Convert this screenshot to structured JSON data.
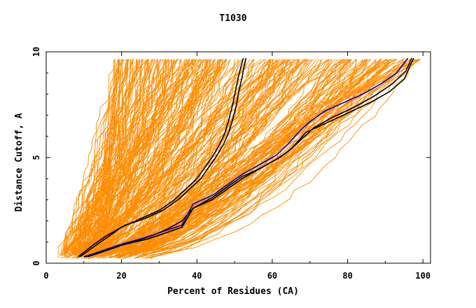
{
  "chart_data": {
    "type": "line",
    "title": "T1030",
    "xlabel": "Percent of Residues (CA)",
    "ylabel": "Distance Cutoff, A",
    "xlim": [
      0,
      102
    ],
    "ylim": [
      0,
      10
    ],
    "xticks": [
      0,
      20,
      40,
      60,
      80,
      100
    ],
    "xtick_labels": [
      "0",
      "20",
      "40",
      "60",
      "80",
      "100"
    ],
    "yticks": [
      0,
      5,
      10
    ],
    "ytick_labels": [
      "0",
      "5",
      "10"
    ],
    "grid": false,
    "colors": {
      "background_models": "#ff8c00",
      "highlight_black": "#000000",
      "highlight_blue": "#0000cc",
      "axes": "#000000"
    },
    "background_series_count": 300,
    "background_series_clusters": [
      {
        "start_x": [
          3,
          14
        ],
        "end_x_at_top": [
          18,
          48
        ],
        "weight": 0.45
      },
      {
        "start_x": [
          10,
          24
        ],
        "end_x_at_top": [
          50,
          80
        ],
        "weight": 0.35
      },
      {
        "start_x": [
          16,
          28
        ],
        "end_x_at_top": [
          80,
          99
        ],
        "weight": 0.2
      }
    ],
    "series": [
      {
        "color": "#000000",
        "x": [
          8.5,
          12,
          16,
          21,
          26,
          31,
          35,
          38,
          41,
          43,
          45,
          47,
          48.5,
          49.5,
          50.5,
          51.2,
          52,
          52.5,
          53
        ],
        "y": [
          0.3,
          0.8,
          1.3,
          1.8,
          2.1,
          2.5,
          3.0,
          3.5,
          4.0,
          4.5,
          5.0,
          5.6,
          6.2,
          6.8,
          7.5,
          8.2,
          8.8,
          9.3,
          9.7
        ]
      },
      {
        "color": "#000000",
        "x": [
          9,
          12,
          16,
          20,
          25,
          30,
          34,
          37,
          40,
          42,
          44,
          46,
          47.5,
          48.5,
          49.5,
          50.3,
          51,
          51.7,
          52.3
        ],
        "y": [
          0.3,
          0.7,
          1.2,
          1.7,
          2.1,
          2.5,
          3.0,
          3.5,
          4.0,
          4.5,
          5.0,
          5.6,
          6.2,
          6.8,
          7.5,
          8.2,
          8.8,
          9.3,
          9.7
        ]
      },
      {
        "color": "#000000",
        "x": [
          10,
          16,
          22,
          28,
          32,
          36,
          39,
          44,
          48,
          52,
          56,
          61,
          65,
          68,
          71,
          76,
          82,
          87,
          92,
          95.5,
          97
        ],
        "y": [
          0.3,
          0.65,
          0.95,
          1.3,
          1.6,
          2.0,
          2.6,
          3.0,
          3.5,
          4.0,
          4.4,
          4.9,
          5.4,
          5.9,
          6.4,
          6.9,
          7.4,
          7.9,
          8.5,
          9.1,
          9.7
        ]
      },
      {
        "color": "#0000cc",
        "x": [
          10.5,
          15,
          20,
          26,
          31,
          36,
          39,
          44,
          48,
          52,
          56,
          61,
          64,
          67,
          70,
          74,
          79,
          84,
          89,
          93,
          96
        ],
        "y": [
          0.3,
          0.6,
          0.9,
          1.2,
          1.5,
          1.8,
          2.8,
          3.2,
          3.7,
          4.2,
          4.6,
          5.1,
          5.6,
          6.2,
          6.7,
          7.2,
          7.6,
          8.0,
          8.5,
          9.0,
          9.7
        ]
      },
      {
        "color": "#000000",
        "x": [
          11,
          16,
          21,
          27,
          32,
          36,
          39,
          44,
          48,
          52,
          57,
          62,
          65,
          67,
          69,
          74,
          80,
          86,
          91,
          95,
          97.5
        ],
        "y": [
          0.3,
          0.6,
          0.9,
          1.15,
          1.45,
          1.7,
          2.6,
          3.1,
          3.6,
          4.1,
          4.5,
          5.0,
          5.4,
          5.8,
          6.2,
          6.6,
          7.1,
          7.6,
          8.1,
          8.7,
          9.7
        ]
      }
    ]
  }
}
